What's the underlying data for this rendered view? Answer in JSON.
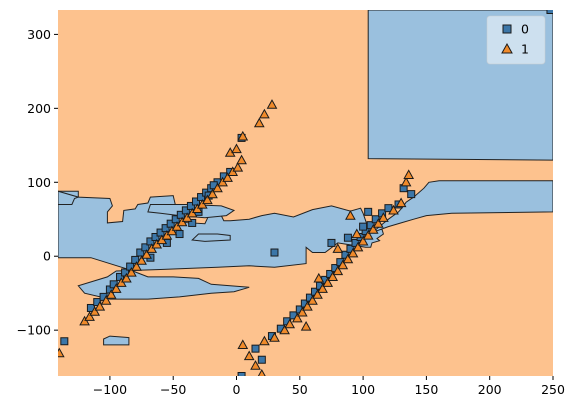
{
  "chart_data": {
    "type": "scatter",
    "subtype": "decision-regions",
    "title": "",
    "xlabel": "",
    "ylabel": "",
    "xlim": [
      -141,
      250
    ],
    "ylim": [
      -162,
      333
    ],
    "x_ticks": [
      -100,
      -50,
      0,
      50,
      100,
      150,
      200,
      250
    ],
    "y_ticks": [
      -100,
      0,
      100,
      200,
      300
    ],
    "x_tick_labels": [
      "−100",
      "−50",
      "0",
      "50",
      "100",
      "150",
      "200",
      "250"
    ],
    "y_tick_labels": [
      "−100",
      "0",
      "100",
      "200",
      "300"
    ],
    "grid": false,
    "legend": {
      "position": "top-right",
      "entries": [
        "0",
        "1"
      ]
    },
    "classes": [
      {
        "name": "0",
        "marker": "square",
        "region_color": "#9ac0de",
        "marker_color": "#3b76a8"
      },
      {
        "name": "1",
        "marker": "triangle",
        "region_color": "#fdc28e",
        "marker_color": "#f08a2a"
      }
    ],
    "regions_class0": [
      [
        [
          -141,
          88
        ],
        [
          -125,
          88
        ],
        [
          -125,
          80
        ],
        [
          -100,
          78
        ],
        [
          -98,
          68
        ],
        [
          -102,
          60
        ],
        [
          -102,
          45
        ],
        [
          -90,
          47
        ],
        [
          -89,
          62
        ],
        [
          -80,
          64
        ],
        [
          -78,
          70
        ],
        [
          -70,
          72
        ],
        [
          -68,
          80
        ],
        [
          -50,
          82
        ],
        [
          -47,
          60
        ],
        [
          -45,
          46
        ],
        [
          -25,
          44
        ],
        [
          -22,
          55
        ],
        [
          -12,
          55
        ],
        [
          -10,
          48
        ],
        [
          -5,
          48
        ],
        [
          10,
          50
        ],
        [
          20,
          55
        ],
        [
          30,
          58
        ],
        [
          45,
          53
        ],
        [
          60,
          63
        ],
        [
          75,
          68
        ],
        [
          90,
          61
        ],
        [
          98,
          65
        ],
        [
          100,
          58
        ],
        [
          104,
          38
        ],
        [
          115,
          36
        ],
        [
          116,
          30
        ],
        [
          111,
          24
        ],
        [
          113,
          21
        ],
        [
          107,
          18
        ],
        [
          106,
          12
        ],
        [
          102,
          12
        ],
        [
          95,
          14
        ],
        [
          80,
          18
        ],
        [
          70,
          5
        ],
        [
          60,
          5
        ],
        [
          55,
          12
        ],
        [
          55,
          -10
        ],
        [
          30,
          -15
        ],
        [
          10,
          -13
        ],
        [
          -15,
          -15
        ],
        [
          -30,
          -16
        ],
        [
          -60,
          -18
        ],
        [
          -95,
          -20
        ],
        [
          -102,
          -28
        ],
        [
          -125,
          -40
        ],
        [
          -120,
          -50
        ],
        [
          -100,
          -58
        ],
        [
          -70,
          -58
        ],
        [
          -45,
          -55
        ],
        [
          -20,
          -50
        ],
        [
          -2,
          -48
        ],
        [
          10,
          -42
        ],
        [
          -20,
          -38
        ],
        [
          -30,
          -30
        ],
        [
          -50,
          -28
        ],
        [
          -70,
          -28
        ],
        [
          -85,
          -18
        ],
        [
          -115,
          -2
        ],
        [
          -141,
          -2
        ]
      ],
      [
        [
          90,
          25
        ],
        [
          100,
          30
        ],
        [
          110,
          36
        ],
        [
          115,
          43
        ],
        [
          120,
          50
        ],
        [
          128,
          60
        ],
        [
          132,
          68
        ],
        [
          134,
          73
        ],
        [
          140,
          80
        ],
        [
          148,
          92
        ],
        [
          152,
          100
        ],
        [
          160,
          102
        ],
        [
          250,
          102
        ],
        [
          250,
          60
        ],
        [
          170,
          58
        ],
        [
          150,
          55
        ],
        [
          140,
          50
        ],
        [
          130,
          45
        ],
        [
          120,
          40
        ],
        [
          112,
          35
        ],
        [
          100,
          28
        ],
        [
          95,
          22
        ],
        [
          92,
          18
        ]
      ],
      [
        [
          -68,
          70
        ],
        [
          -40,
          70
        ],
        [
          -12,
          68
        ],
        [
          -2,
          62
        ],
        [
          -8,
          55
        ],
        [
          -25,
          52
        ],
        [
          -45,
          55
        ],
        [
          -60,
          58
        ],
        [
          -70,
          60
        ]
      ],
      [
        [
          104,
          333
        ],
        [
          250,
          333
        ],
        [
          250,
          130
        ],
        [
          104,
          132
        ]
      ],
      [
        [
          -105,
          -120
        ],
        [
          -85,
          -120
        ],
        [
          -85,
          -110
        ],
        [
          -100,
          -108
        ],
        [
          -105,
          -112
        ]
      ],
      [
        [
          -141,
          88
        ],
        [
          -141,
          70
        ],
        [
          -130,
          70
        ],
        [
          -128,
          78
        ],
        [
          -125,
          80
        ]
      ],
      [
        [
          -30,
          30
        ],
        [
          -15,
          30
        ],
        [
          -5,
          28
        ],
        [
          -5,
          22
        ],
        [
          -25,
          20
        ],
        [
          -35,
          22
        ]
      ]
    ],
    "class0_points": [
      [
        -136,
        -115
      ],
      [
        -115,
        -70
      ],
      [
        -110,
        -62
      ],
      [
        -105,
        -55
      ],
      [
        -100,
        -45
      ],
      [
        -97,
        -38
      ],
      [
        -92,
        -28
      ],
      [
        -88,
        -22
      ],
      [
        -84,
        -14
      ],
      [
        -80,
        -5
      ],
      [
        -76,
        5
      ],
      [
        -72,
        12
      ],
      [
        -68,
        20
      ],
      [
        -64,
        26
      ],
      [
        -60,
        32
      ],
      [
        -56,
        38
      ],
      [
        -52,
        44
      ],
      [
        -48,
        50
      ],
      [
        -44,
        56
      ],
      [
        -40,
        62
      ],
      [
        -36,
        68
      ],
      [
        -32,
        74
      ],
      [
        -28,
        80
      ],
      [
        -24,
        86
      ],
      [
        -20,
        92
      ],
      [
        -15,
        100
      ],
      [
        -10,
        108
      ],
      [
        -5,
        114
      ],
      [
        4,
        160
      ],
      [
        -68,
        -2
      ],
      [
        -55,
        18
      ],
      [
        -45,
        30
      ],
      [
        -35,
        45
      ],
      [
        -30,
        60
      ],
      [
        -22,
        82
      ],
      [
        -18,
        96
      ],
      [
        30,
        5
      ],
      [
        20,
        -140
      ],
      [
        15,
        -125
      ],
      [
        28,
        -108
      ],
      [
        35,
        -98
      ],
      [
        40,
        -88
      ],
      [
        45,
        -80
      ],
      [
        50,
        -72
      ],
      [
        54,
        -64
      ],
      [
        58,
        -56
      ],
      [
        62,
        -48
      ],
      [
        66,
        -40
      ],
      [
        70,
        -32
      ],
      [
        74,
        -24
      ],
      [
        78,
        -16
      ],
      [
        82,
        -8
      ],
      [
        86,
        2
      ],
      [
        90,
        10
      ],
      [
        94,
        18
      ],
      [
        98,
        26
      ],
      [
        102,
        34
      ],
      [
        106,
        42
      ],
      [
        110,
        50
      ],
      [
        115,
        58
      ],
      [
        120,
        65
      ],
      [
        128,
        70
      ],
      [
        132,
        92
      ],
      [
        138,
        84
      ],
      [
        75,
        18
      ],
      [
        88,
        25
      ],
      [
        100,
        40
      ],
      [
        104,
        60
      ],
      [
        4,
        -162
      ],
      [
        248,
        333
      ]
    ],
    "class1_points": [
      [
        -140,
        -131
      ],
      [
        -120,
        -88
      ],
      [
        -116,
        -82
      ],
      [
        -112,
        -75
      ],
      [
        -108,
        -68
      ],
      [
        -103,
        -60
      ],
      [
        -99,
        -52
      ],
      [
        -95,
        -44
      ],
      [
        -91,
        -36
      ],
      [
        -87,
        -30
      ],
      [
        -83,
        -22
      ],
      [
        -79,
        -14
      ],
      [
        -75,
        -6
      ],
      [
        -71,
        2
      ],
      [
        -67,
        10
      ],
      [
        -63,
        16
      ],
      [
        -59,
        22
      ],
      [
        -55,
        28
      ],
      [
        -51,
        34
      ],
      [
        -47,
        40
      ],
      [
        -43,
        46
      ],
      [
        -39,
        52
      ],
      [
        -35,
        58
      ],
      [
        -31,
        64
      ],
      [
        -27,
        70
      ],
      [
        -23,
        76
      ],
      [
        -19,
        84
      ],
      [
        -15,
        92
      ],
      [
        -11,
        100
      ],
      [
        -7,
        106
      ],
      [
        -3,
        114
      ],
      [
        1,
        120
      ],
      [
        4,
        130
      ],
      [
        -5,
        140
      ],
      [
        0,
        145
      ],
      [
        5,
        162
      ],
      [
        18,
        180
      ],
      [
        22,
        192
      ],
      [
        28,
        205
      ],
      [
        10,
        -135
      ],
      [
        15,
        -148
      ],
      [
        20,
        -160
      ],
      [
        5,
        -120
      ],
      [
        22,
        -115
      ],
      [
        30,
        -110
      ],
      [
        38,
        -100
      ],
      [
        42,
        -92
      ],
      [
        48,
        -84
      ],
      [
        52,
        -76
      ],
      [
        56,
        -68
      ],
      [
        60,
        -60
      ],
      [
        64,
        -52
      ],
      [
        68,
        -44
      ],
      [
        72,
        -36
      ],
      [
        76,
        -28
      ],
      [
        80,
        -20
      ],
      [
        84,
        -12
      ],
      [
        88,
        -4
      ],
      [
        92,
        4
      ],
      [
        96,
        12
      ],
      [
        100,
        20
      ],
      [
        104,
        28
      ],
      [
        108,
        36
      ],
      [
        112,
        44
      ],
      [
        116,
        52
      ],
      [
        124,
        62
      ],
      [
        130,
        72
      ],
      [
        134,
        100
      ],
      [
        136,
        110
      ],
      [
        90,
        55
      ],
      [
        80,
        10
      ],
      [
        95,
        30
      ],
      [
        65,
        -30
      ],
      [
        55,
        -95
      ]
    ]
  }
}
